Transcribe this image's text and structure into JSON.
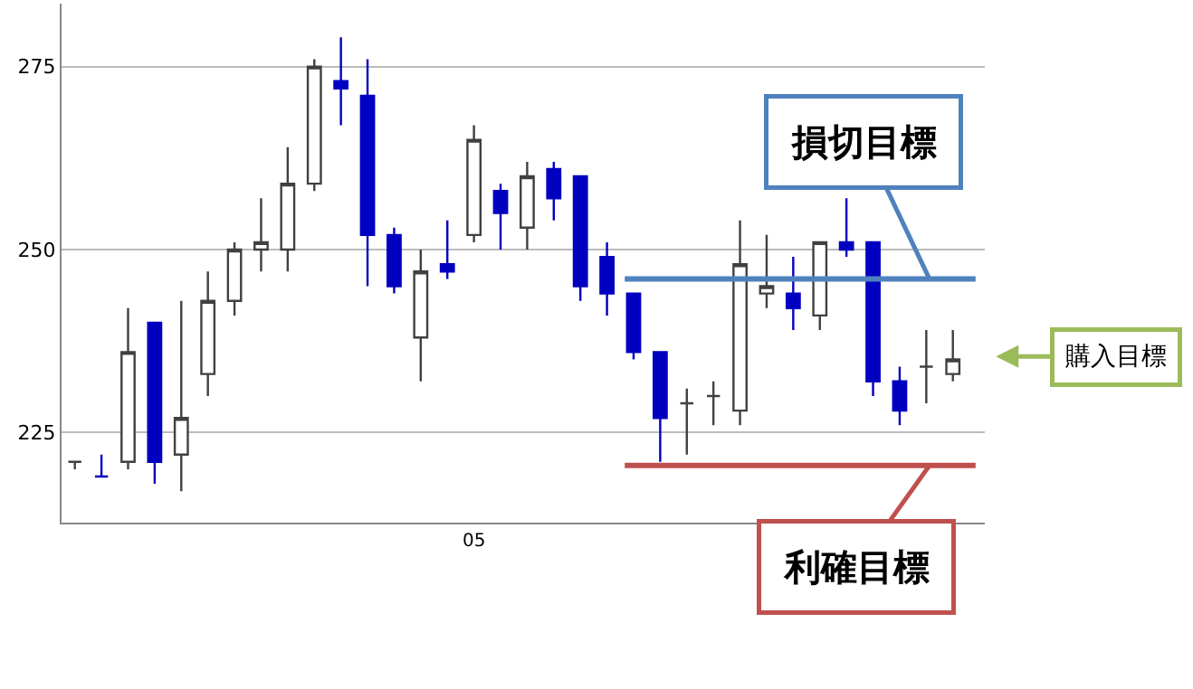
{
  "chart_data": {
    "type": "candlestick",
    "categories": [
      null,
      null,
      null,
      null,
      null,
      null,
      null,
      null,
      null,
      null,
      null,
      null,
      null,
      null,
      null,
      "05",
      null,
      null,
      null,
      null,
      null,
      null,
      null,
      null,
      null,
      null,
      null,
      null,
      null,
      null,
      null,
      null,
      null,
      null
    ],
    "ohlc": [
      [
        221,
        221,
        220,
        221
      ],
      [
        219,
        222,
        219,
        219
      ],
      [
        221,
        242,
        220,
        236
      ],
      [
        240,
        240,
        218,
        221
      ],
      [
        222,
        243,
        217,
        227
      ],
      [
        233,
        247,
        230,
        243
      ],
      [
        243,
        251,
        241,
        250
      ],
      [
        250,
        257,
        247,
        251
      ],
      [
        250,
        264,
        247,
        259
      ],
      [
        259,
        276,
        258,
        275
      ],
      [
        273,
        279,
        267,
        272
      ],
      [
        271,
        276,
        245,
        252
      ],
      [
        252,
        253,
        244,
        245
      ],
      [
        238,
        250,
        232,
        247
      ],
      [
        248,
        254,
        246,
        247
      ],
      [
        252,
        267,
        251,
        265
      ],
      [
        258,
        259,
        250,
        255
      ],
      [
        253,
        262,
        250,
        260
      ],
      [
        261,
        262,
        254,
        257
      ],
      [
        260,
        260,
        243,
        245
      ],
      [
        249,
        251,
        241,
        244
      ],
      [
        244,
        244,
        235,
        236
      ],
      [
        236,
        236,
        221,
        227
      ],
      [
        229,
        231,
        222,
        229
      ],
      [
        230,
        232,
        226,
        230
      ],
      [
        228,
        254,
        226,
        248
      ],
      [
        244,
        252,
        242,
        245
      ],
      [
        244,
        249,
        239,
        242
      ],
      [
        241,
        251,
        239,
        251
      ],
      [
        251,
        257,
        249,
        250
      ],
      [
        251,
        251,
        230,
        232
      ],
      [
        232,
        234,
        226,
        228
      ],
      [
        234,
        239,
        229,
        234
      ],
      [
        233,
        239,
        232,
        235
      ]
    ],
    "ylim": [
      212.7,
      283.6
    ],
    "yticks": [
      225,
      250,
      275
    ],
    "grid": "y",
    "ref_lines": [
      {
        "axis": "y",
        "value": 246,
        "label": "損切目標",
        "color": "#4f81bd"
      },
      {
        "axis": "y",
        "value": 220.5,
        "label": "利確目標",
        "color": "#c0504d"
      }
    ],
    "annotations": [
      "購入目標"
    ]
  }
}
